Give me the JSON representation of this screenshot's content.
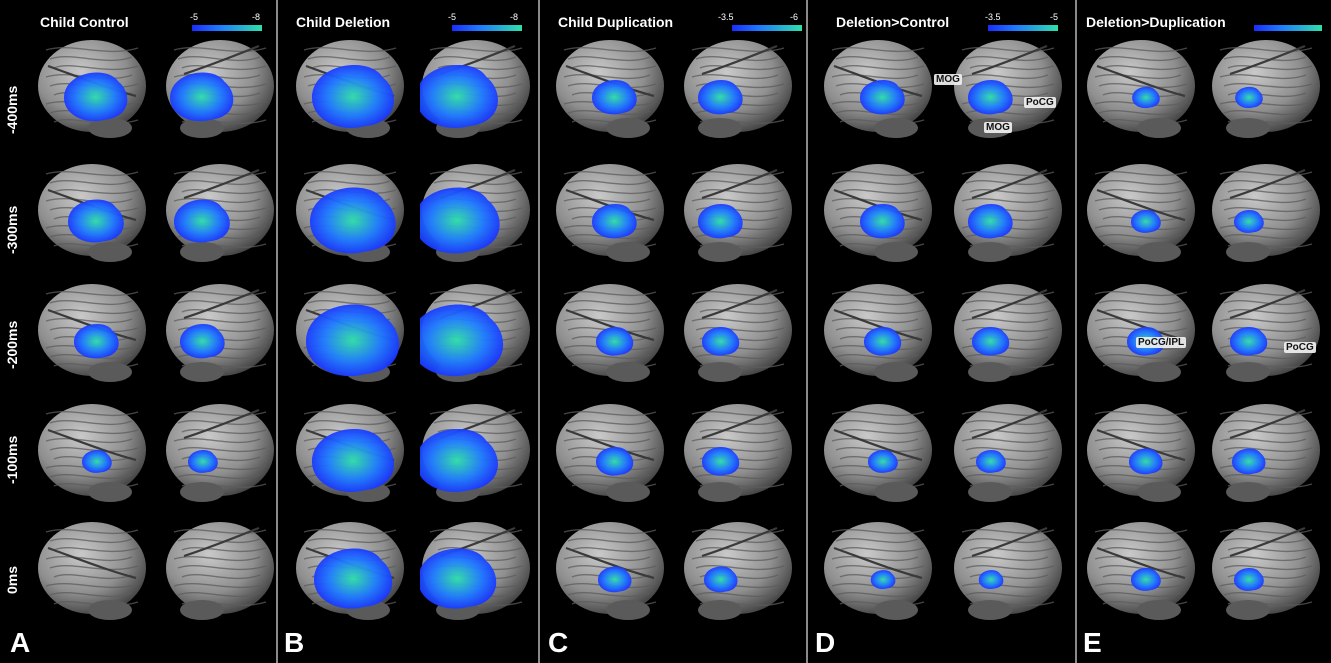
{
  "panels": [
    {
      "title": "Child Control",
      "letter": "A",
      "scale_min": "-5",
      "scale_max": "-8"
    },
    {
      "title": "Child Deletion",
      "letter": "B",
      "scale_min": "-5",
      "scale_max": "-8"
    },
    {
      "title": "Child Duplication",
      "letter": "C",
      "scale_min": "-3.5",
      "scale_max": "-6"
    },
    {
      "title": "Deletion>Control",
      "letter": "D",
      "scale_min": "-3.5",
      "scale_max": "-5"
    },
    {
      "title": "Deletion>Duplication",
      "letter": "E",
      "scale_min": "",
      "scale_max": ""
    }
  ],
  "rows": [
    "-400ms",
    "-300ms",
    "-200ms",
    "-100ms",
    "0ms"
  ],
  "annotations": {
    "mog_1": "MOG",
    "mog_2": "MOG",
    "pocg_d": "PoCG",
    "pocg_ipl": "PoCG/IPL",
    "pocg_e": "PoCG"
  },
  "colors": {
    "background": "#000000",
    "brain_gray": "#8f8f8f",
    "activation_low": "#1a2cff",
    "activation_high": "#2fe0a8",
    "divider": "#8a8a8a"
  }
}
